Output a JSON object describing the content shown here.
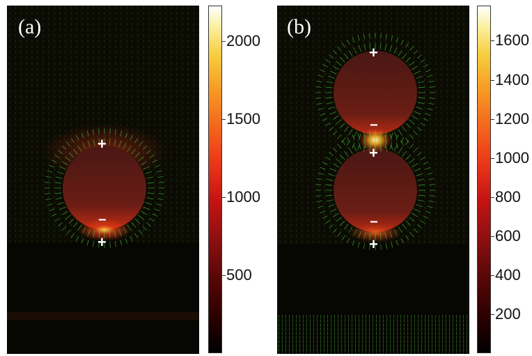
{
  "panels": [
    {
      "label": "(a)",
      "colorbar": {
        "min": 0,
        "max": 2230,
        "ticks": [
          {
            "value": 500,
            "label": "500"
          },
          {
            "value": 1000,
            "label": "1000"
          },
          {
            "value": 1500,
            "label": "1500"
          },
          {
            "value": 2000,
            "label": "2000"
          }
        ]
      },
      "charges": [
        {
          "symbol": "+"
        },
        {
          "symbol": "−"
        },
        {
          "symbol": "+"
        }
      ]
    },
    {
      "label": "(b)",
      "colorbar": {
        "min": 0,
        "max": 1780,
        "ticks": [
          {
            "value": 200,
            "label": "200"
          },
          {
            "value": 400,
            "label": "400"
          },
          {
            "value": 600,
            "label": "600"
          },
          {
            "value": 800,
            "label": "800"
          },
          {
            "value": 1000,
            "label": "1000"
          },
          {
            "value": 1200,
            "label": "1200"
          },
          {
            "value": 1400,
            "label": "1400"
          },
          {
            "value": 1600,
            "label": "1600"
          }
        ]
      },
      "charges": [
        {
          "symbol": "+"
        },
        {
          "symbol": "−"
        },
        {
          "symbol": "+"
        },
        {
          "symbol": "−"
        },
        {
          "symbol": "+"
        }
      ]
    }
  ],
  "colors": {
    "background": "#0b0b04",
    "particle": "#5a1b16",
    "arrow": "#4fd23a",
    "hot": "#ffd84a"
  }
}
